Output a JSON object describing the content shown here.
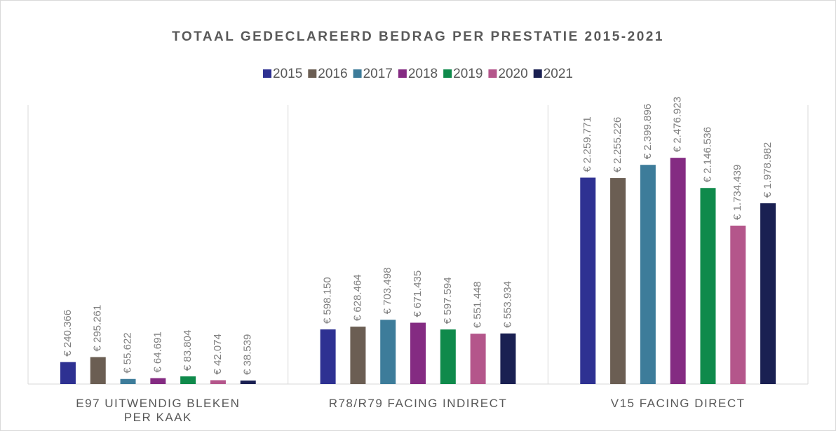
{
  "chart_data": {
    "type": "bar",
    "title": "TOTAAL GEDECLAREERD BEDRAG PER PRESTATIE 2015-2021",
    "categories": [
      "E97 UITWENDIG BLEKEN PER KAAK",
      "R78/R79 FACING INDIRECT",
      "V15 FACING DIRECT"
    ],
    "ylim": [
      0,
      3000000
    ],
    "legend": "top",
    "series": [
      {
        "name": "2015",
        "color": "#2e3192",
        "values": [
          240366,
          598150,
          2259771
        ],
        "value_labels": [
          "€ 240.366",
          "€ 598.150",
          "€ 2.259.771"
        ]
      },
      {
        "name": "2016",
        "color": "#6b5e53",
        "values": [
          295261,
          628464,
          2255226
        ],
        "value_labels": [
          "€ 295.261",
          "€ 628.464",
          "€ 2.255.226"
        ]
      },
      {
        "name": "2017",
        "color": "#3d7c9a",
        "values": [
          55622,
          703498,
          2399896
        ],
        "value_labels": [
          "€ 55.622",
          "€ 703.498",
          "€ 2.399.896"
        ]
      },
      {
        "name": "2018",
        "color": "#842b82",
        "values": [
          64691,
          671435,
          2476923
        ],
        "value_labels": [
          "€ 64.691",
          "€ 671.435",
          "€ 2.476.923"
        ]
      },
      {
        "name": "2019",
        "color": "#0f8a4b",
        "values": [
          83804,
          597594,
          2146536
        ],
        "value_labels": [
          "€ 83.804",
          "€ 597.594",
          "€ 2.146.536"
        ]
      },
      {
        "name": "2020",
        "color": "#b4568b",
        "values": [
          42074,
          551448,
          1734439
        ],
        "value_labels": [
          "€ 42.074",
          "€ 551.448",
          "€ 1.734.439"
        ]
      },
      {
        "name": "2021",
        "color": "#1a2052",
        "values": [
          38539,
          553934,
          1978982
        ],
        "value_labels": [
          "€ 38.539",
          "€ 553.934",
          "€ 1.978.982"
        ]
      }
    ]
  }
}
